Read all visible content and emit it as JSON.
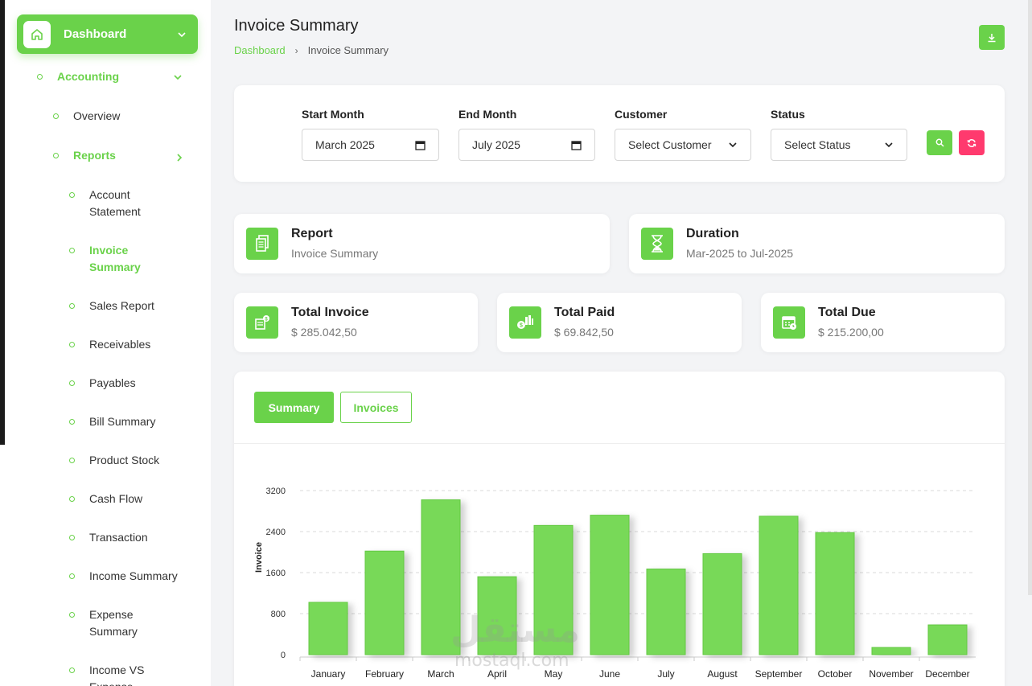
{
  "sidebar": {
    "dashboard": "Dashboard",
    "accounting": "Accounting",
    "overview": "Overview",
    "reports": "Reports",
    "items": [
      {
        "label": "Account Statement"
      },
      {
        "label": "Invoice Summary"
      },
      {
        "label": "Sales Report"
      },
      {
        "label": "Receivables"
      },
      {
        "label": "Payables"
      },
      {
        "label": "Bill Summary"
      },
      {
        "label": "Product Stock"
      },
      {
        "label": "Cash Flow"
      },
      {
        "label": "Transaction"
      },
      {
        "label": "Income Summary"
      },
      {
        "label": "Expense Summary"
      },
      {
        "label": "Income VS Expense"
      }
    ]
  },
  "header": {
    "title": "Invoice Summary",
    "breadcrumb_home": "Dashboard",
    "breadcrumb_sep": "›",
    "breadcrumb_current": "Invoice Summary"
  },
  "filters": {
    "start_label": "Start Month",
    "start_value": "March 2025",
    "end_label": "End Month",
    "end_value": "July 2025",
    "customer_label": "Customer",
    "customer_value": "Select Customer",
    "status_label": "Status",
    "status_value": "Select Status"
  },
  "info": {
    "report_title": "Report",
    "report_value": "Invoice Summary",
    "duration_title": "Duration",
    "duration_value": "Mar-2025 to Jul-2025",
    "total_invoice_title": "Total Invoice",
    "total_invoice_value": "$ 285.042,50",
    "total_paid_title": "Total Paid",
    "total_paid_value": "$ 69.842,50",
    "total_due_title": "Total Due",
    "total_due_value": "$ 215.200,00"
  },
  "tabs": {
    "summary": "Summary",
    "invoices": "Invoices"
  },
  "colors": {
    "accent": "#6ad24a",
    "danger": "#ff3a6e"
  },
  "watermark": {
    "arabic": "مستقل",
    "latin": "mostaql.com"
  },
  "chart_data": {
    "type": "bar",
    "ylabel": "Invoice",
    "xlabel": "",
    "ylim": [
      0,
      3200
    ],
    "yticks": [
      0,
      800,
      1600,
      2400,
      3200
    ],
    "categories": [
      "January",
      "February",
      "March",
      "April",
      "May",
      "June",
      "July",
      "August",
      "September",
      "October",
      "November",
      "December"
    ],
    "values": [
      1020,
      2020,
      3020,
      1520,
      2520,
      2720,
      1670,
      1970,
      2700,
      2380,
      140,
      580
    ],
    "grid": true
  }
}
